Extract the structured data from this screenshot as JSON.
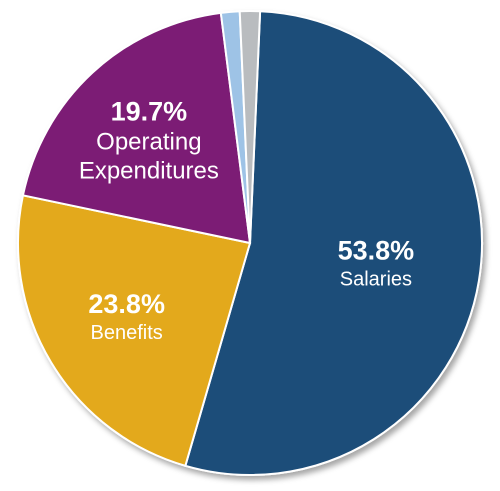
{
  "chart_data": {
    "type": "pie",
    "slices": [
      {
        "label": "Salaries",
        "percent_label": "53.8%",
        "value": 53.8,
        "color": "#1f4e79"
      },
      {
        "label": "Benefits",
        "percent_label": "23.8%",
        "value": 23.8,
        "color": "#e3a91c"
      },
      {
        "label": "Operating Expenditures",
        "label_lines": [
          "Operating",
          "Expenditures"
        ],
        "percent_label": "19.7%",
        "value": 19.7,
        "color": "#7b1a74"
      },
      {
        "label": "",
        "percent_label": "",
        "value": 1.3,
        "color": "#9ec3e6"
      },
      {
        "label": "",
        "percent_label": "",
        "value": 1.4,
        "color": "#b9bcbf"
      }
    ],
    "start_angle_deg": 0,
    "direction": "clockwise",
    "legend": "none"
  }
}
